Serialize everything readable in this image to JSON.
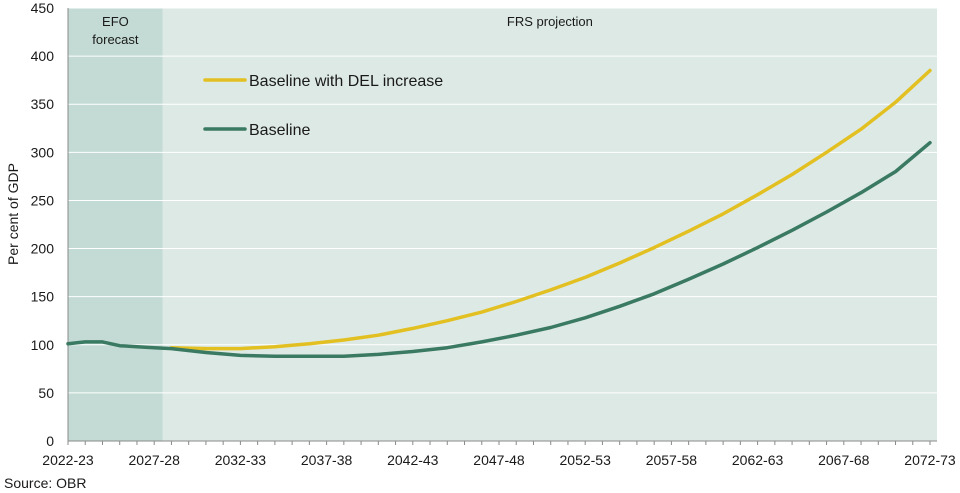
{
  "chart_data": {
    "type": "line",
    "title": "",
    "ylabel": "Per cent of GDP",
    "xlabel": "",
    "ylim": [
      0,
      450
    ],
    "yticks": [
      0,
      50,
      100,
      150,
      200,
      250,
      300,
      350,
      400,
      450
    ],
    "x_start_year": 2022,
    "x_end_year": 2072,
    "x_tick_labels": [
      "2022-23",
      "2027-28",
      "2032-33",
      "2037-38",
      "2042-43",
      "2047-48",
      "2052-53",
      "2057-58",
      "2062-63",
      "2067-68",
      "2072-73"
    ],
    "regions": [
      {
        "label_lines": [
          "EFO",
          "forecast"
        ],
        "from_year": 2022,
        "to_year": 2027.5,
        "color": "#c3dbd4"
      },
      {
        "label_lines": [
          "FRS projection"
        ],
        "from_year": 2027.5,
        "to_year": 2072.9,
        "color": "#dde9e5"
      }
    ],
    "series": [
      {
        "name": "Baseline with DEL increase",
        "color": "#e3c021",
        "x": [
          2028,
          2030,
          2032,
          2034,
          2036,
          2038,
          2040,
          2042,
          2044,
          2046,
          2048,
          2050,
          2052,
          2054,
          2056,
          2058,
          2060,
          2062,
          2064,
          2066,
          2068,
          2070,
          2072
        ],
        "values": [
          97,
          96,
          96,
          98,
          101,
          105,
          110,
          117,
          125,
          134,
          145,
          157,
          170,
          185,
          201,
          218,
          236,
          256,
          277,
          300,
          324,
          352,
          385
        ]
      },
      {
        "name": "Baseline",
        "color": "#3a7a62",
        "x": [
          2022,
          2023,
          2024,
          2025,
          2026,
          2027,
          2028,
          2030,
          2032,
          2034,
          2036,
          2038,
          2040,
          2042,
          2044,
          2046,
          2048,
          2050,
          2052,
          2054,
          2056,
          2058,
          2060,
          2062,
          2064,
          2066,
          2068,
          2070,
          2072
        ],
        "values": [
          101,
          103,
          103,
          99,
          98,
          97,
          96,
          92,
          89,
          88,
          88,
          88,
          90,
          93,
          97,
          103,
          110,
          118,
          128,
          140,
          153,
          168,
          184,
          201,
          219,
          238,
          258,
          280,
          310
        ]
      }
    ],
    "legend_position": "top-left",
    "source": "Source: OBR"
  }
}
